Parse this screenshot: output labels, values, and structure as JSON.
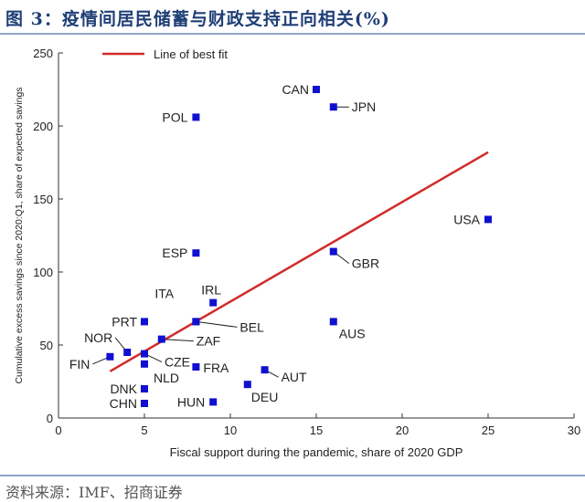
{
  "figure": {
    "title": "图 3：疫情间居民储蓄与财政支持正向相关(%)",
    "source": "资料来源：IMF、招商证券"
  },
  "chart_data": {
    "type": "scatter",
    "xlabel": "Fiscal support during the pandemic, share of 2020 GDP",
    "ylabel": "Cumulative excess savings since 2020:Q1, share of expected savings",
    "xlim": [
      0,
      30
    ],
    "ylim": [
      0,
      250
    ],
    "xticks": [
      0,
      5,
      10,
      15,
      20,
      25,
      30
    ],
    "yticks": [
      0,
      50,
      100,
      150,
      200,
      250
    ],
    "grid": false,
    "legend": {
      "position": "top-left",
      "entries": [
        "Line of best fit"
      ]
    },
    "colors": {
      "points": "#1010d0",
      "fit_line": "#d22a2a",
      "axis": "#333333",
      "text": "#222222"
    },
    "points": [
      {
        "label": "CAN",
        "x": 15,
        "y": 225
      },
      {
        "label": "JPN",
        "x": 16,
        "y": 213
      },
      {
        "label": "POL",
        "x": 8,
        "y": 206
      },
      {
        "label": "USA",
        "x": 25,
        "y": 136
      },
      {
        "label": "ESP",
        "x": 8,
        "y": 113
      },
      {
        "label": "GBR",
        "x": 16,
        "y": 114
      },
      {
        "label": "IRL",
        "x": 9,
        "y": 79
      },
      {
        "label": "ITA",
        "x": 8,
        "y": 66
      },
      {
        "label": "BEL",
        "x": 8,
        "y": 66
      },
      {
        "label": "PRT",
        "x": 5,
        "y": 66
      },
      {
        "label": "AUS",
        "x": 16,
        "y": 66
      },
      {
        "label": "NOR",
        "x": 4,
        "y": 45
      },
      {
        "label": "ZAF",
        "x": 6,
        "y": 54
      },
      {
        "label": "CZE",
        "x": 5,
        "y": 44
      },
      {
        "label": "FIN",
        "x": 3,
        "y": 42
      },
      {
        "label": "NLD",
        "x": 5,
        "y": 37
      },
      {
        "label": "FRA",
        "x": 8,
        "y": 35
      },
      {
        "label": "AUT",
        "x": 12,
        "y": 33
      },
      {
        "label": "DEU",
        "x": 11,
        "y": 23
      },
      {
        "label": "DNK",
        "x": 5,
        "y": 20
      },
      {
        "label": "CHN",
        "x": 5,
        "y": 10
      },
      {
        "label": "HUN",
        "x": 9,
        "y": 11
      }
    ],
    "fit_line": {
      "name": "Line of best fit",
      "x": [
        3,
        25
      ],
      "y": [
        32,
        182
      ]
    }
  }
}
